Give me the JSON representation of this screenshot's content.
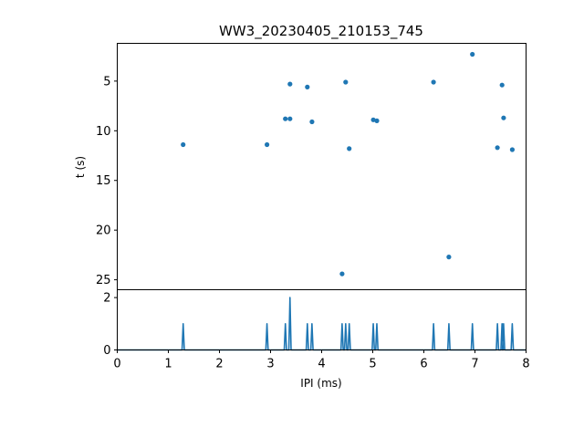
{
  "chart_data": {
    "type": "scatter",
    "title": "WW3_20230405_210153_745",
    "xlabel": "IPI (ms)",
    "ylabel": "t (s)",
    "xlim": [
      0,
      8
    ],
    "xticks": [
      "0",
      "1",
      "2",
      "3",
      "4",
      "5",
      "6",
      "7",
      "8"
    ],
    "scatter": {
      "ylim": [
        26,
        1.2
      ],
      "y_inverted": true,
      "yticks": [
        "5",
        "10",
        "15",
        "20",
        "25"
      ],
      "color": "#1f77b4",
      "points": [
        {
          "x": 1.29,
          "y": 11.4
        },
        {
          "x": 2.93,
          "y": 11.4
        },
        {
          "x": 3.29,
          "y": 8.8
        },
        {
          "x": 3.38,
          "y": 8.8
        },
        {
          "x": 3.38,
          "y": 5.3
        },
        {
          "x": 3.72,
          "y": 5.6
        },
        {
          "x": 3.81,
          "y": 9.1
        },
        {
          "x": 4.4,
          "y": 24.4
        },
        {
          "x": 4.47,
          "y": 5.1
        },
        {
          "x": 4.54,
          "y": 11.8
        },
        {
          "x": 5.01,
          "y": 8.9
        },
        {
          "x": 5.08,
          "y": 9.0
        },
        {
          "x": 6.19,
          "y": 5.1
        },
        {
          "x": 6.49,
          "y": 22.7
        },
        {
          "x": 6.95,
          "y": 2.3
        },
        {
          "x": 7.44,
          "y": 11.7
        },
        {
          "x": 7.53,
          "y": 5.4
        },
        {
          "x": 7.56,
          "y": 8.7
        },
        {
          "x": 7.73,
          "y": 11.9
        }
      ]
    },
    "histogram": {
      "ylim": [
        0,
        2.3
      ],
      "yticks": [
        "0",
        "2"
      ],
      "color": "#1f77b4",
      "peaks": [
        {
          "x": 1.29,
          "count": 1
        },
        {
          "x": 2.93,
          "count": 1
        },
        {
          "x": 3.29,
          "count": 1
        },
        {
          "x": 3.38,
          "count": 2
        },
        {
          "x": 3.72,
          "count": 1
        },
        {
          "x": 3.81,
          "count": 1
        },
        {
          "x": 4.4,
          "count": 1
        },
        {
          "x": 4.47,
          "count": 1
        },
        {
          "x": 4.54,
          "count": 1
        },
        {
          "x": 5.01,
          "count": 1
        },
        {
          "x": 5.08,
          "count": 1
        },
        {
          "x": 6.19,
          "count": 1
        },
        {
          "x": 6.49,
          "count": 1
        },
        {
          "x": 6.95,
          "count": 1
        },
        {
          "x": 7.44,
          "count": 1
        },
        {
          "x": 7.53,
          "count": 1
        },
        {
          "x": 7.56,
          "count": 1
        },
        {
          "x": 7.73,
          "count": 1
        }
      ]
    }
  }
}
